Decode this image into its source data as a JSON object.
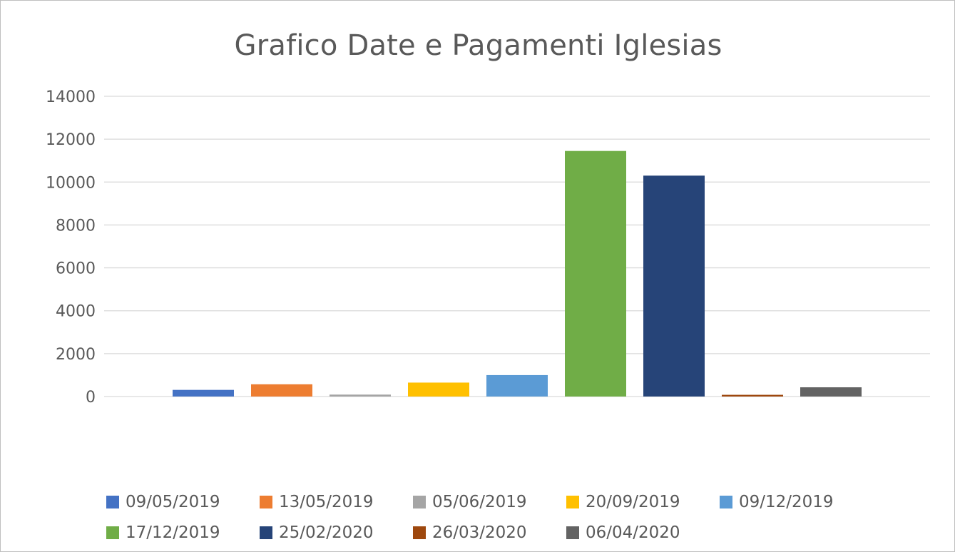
{
  "chart_data": {
    "type": "bar",
    "title": "Grafico Date e Pagamenti Iglesias",
    "xlabel": "",
    "ylabel": "",
    "ylim": [
      0,
      14000
    ],
    "yticks": [
      0,
      2000,
      4000,
      6000,
      8000,
      10000,
      12000,
      14000
    ],
    "grid": true,
    "legend_position": "bottom",
    "series": [
      {
        "name": "09/05/2019",
        "value": 310,
        "color": "#4472C4"
      },
      {
        "name": "13/05/2019",
        "value": 570,
        "color": "#ED7D31"
      },
      {
        "name": "05/06/2019",
        "value": 90,
        "color": "#A5A5A5"
      },
      {
        "name": "20/09/2019",
        "value": 650,
        "color": "#FFC000"
      },
      {
        "name": "09/12/2019",
        "value": 1000,
        "color": "#5B9BD5"
      },
      {
        "name": "17/12/2019",
        "value": 11450,
        "color": "#70AD47"
      },
      {
        "name": "25/02/2020",
        "value": 10300,
        "color": "#264478"
      },
      {
        "name": "26/03/2020",
        "value": 80,
        "color": "#9E480E"
      },
      {
        "name": "06/04/2020",
        "value": 430,
        "color": "#636363"
      }
    ]
  }
}
